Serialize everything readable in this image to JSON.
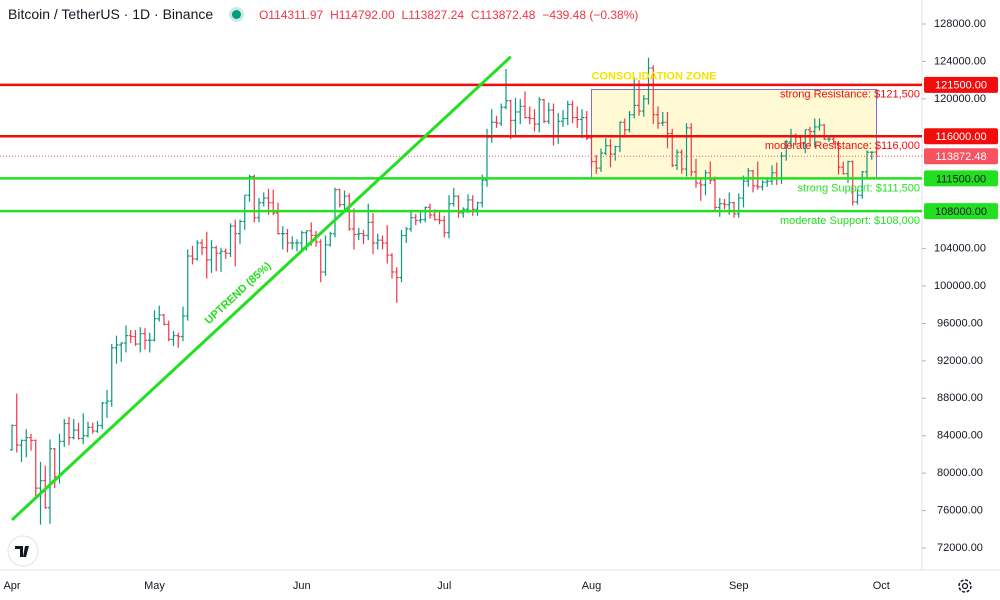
{
  "chart_data": {
    "type": "ohlc",
    "header": {
      "symbol": "Bitcoin / TetherUS · 1D · Binance",
      "open": "O114311.97",
      "high": "H114792.00",
      "low": "L113827.24",
      "close": "C113872.48",
      "change": "−439.48 (−0.38%)"
    },
    "up_color": "#089981",
    "down_color": "#f23645",
    "ylim": [
      69650,
      130565
    ],
    "yticks": [
      {
        "value": 128000,
        "label": "128000.00"
      },
      {
        "value": 124000,
        "label": "124000.00"
      },
      {
        "value": 120000,
        "label": "120000.00"
      },
      {
        "value": 104000,
        "label": "104000.00"
      },
      {
        "value": 100000,
        "label": "100000.00"
      },
      {
        "value": 96000,
        "label": "96000.00"
      },
      {
        "value": 92000,
        "label": "92000.00"
      },
      {
        "value": 88000,
        "label": "88000.00"
      },
      {
        "value": 84000,
        "label": "84000.00"
      },
      {
        "value": 80000,
        "label": "80000.00"
      },
      {
        "value": 76000,
        "label": "76000.00"
      },
      {
        "value": 72000,
        "label": "72000.00"
      }
    ],
    "categories": [
      "Apr",
      null,
      null,
      null,
      null,
      null,
      null,
      null,
      null,
      null,
      null,
      null,
      null,
      null,
      null,
      null,
      null,
      null,
      null,
      null,
      null,
      null,
      null,
      null,
      null,
      null,
      null,
      null,
      null,
      null,
      "May",
      null,
      null,
      null,
      null,
      null,
      null,
      null,
      null,
      null,
      null,
      null,
      null,
      null,
      null,
      null,
      null,
      null,
      null,
      null,
      null,
      null,
      null,
      null,
      null,
      null,
      null,
      null,
      null,
      null,
      null,
      "Jun",
      null,
      null,
      null,
      null,
      null,
      null,
      null,
      null,
      null,
      null,
      null,
      null,
      null,
      null,
      null,
      null,
      null,
      null,
      null,
      null,
      null,
      null,
      null,
      null,
      null,
      null,
      null,
      null,
      null,
      "Jul",
      null,
      null,
      null,
      null,
      null,
      null,
      null,
      null,
      null,
      null,
      null,
      null,
      null,
      null,
      null,
      null,
      null,
      null,
      null,
      null,
      null,
      null,
      null,
      null,
      null,
      null,
      null,
      null,
      null,
      null,
      "Aug",
      null,
      null,
      null,
      null,
      null,
      null,
      null,
      null,
      null,
      null,
      null,
      null,
      null,
      null,
      null,
      null,
      null,
      null,
      null,
      null,
      null,
      null,
      null,
      null,
      null,
      null,
      null,
      null,
      null,
      null,
      "Sep",
      null,
      null,
      null,
      null,
      null,
      null,
      null,
      null,
      null,
      null,
      null,
      null,
      null,
      null,
      null,
      null,
      null,
      null,
      null,
      null,
      null,
      null,
      null,
      null,
      null,
      null,
      null,
      null,
      null,
      "Oct"
    ],
    "ohlc": [
      [
        82500,
        85200,
        82400,
        85100
      ],
      [
        85100,
        88500,
        82200,
        83000
      ],
      [
        83000,
        83600,
        81200,
        83500
      ],
      [
        83500,
        84700,
        81700,
        83800
      ],
      [
        83800,
        84200,
        82400,
        83500
      ],
      [
        83500,
        83600,
        77200,
        78400
      ],
      [
        78400,
        81200,
        74500,
        79200
      ],
      [
        79200,
        80800,
        76200,
        76300
      ],
      [
        76300,
        83600,
        74600,
        82600
      ],
      [
        82600,
        82700,
        78400,
        79600
      ],
      [
        79600,
        84200,
        78900,
        83400
      ],
      [
        83400,
        85800,
        82800,
        85300
      ],
      [
        85300,
        86000,
        83000,
        83800
      ],
      [
        83800,
        85800,
        83600,
        84600
      ],
      [
        84600,
        85400,
        83600,
        83700
      ],
      [
        83700,
        86400,
        83100,
        84000
      ],
      [
        84000,
        85500,
        83800,
        84900
      ],
      [
        84900,
        85400,
        84200,
        84500
      ],
      [
        84500,
        85600,
        84300,
        85100
      ],
      [
        85100,
        87600,
        84700,
        87500
      ],
      [
        87500,
        88900,
        85900,
        87700
      ],
      [
        87700,
        93800,
        87100,
        93400
      ],
      [
        93400,
        94700,
        91700,
        93700
      ],
      [
        93700,
        94000,
        91900,
        93900
      ],
      [
        93900,
        95800,
        92900,
        94700
      ],
      [
        94700,
        95300,
        93900,
        94600
      ],
      [
        94600,
        95300,
        93600,
        93800
      ],
      [
        93800,
        95600,
        92900,
        94900
      ],
      [
        94900,
        95500,
        93200,
        94200
      ],
      [
        94200,
        95000,
        92900,
        94200
      ],
      [
        94200,
        97400,
        94100,
        96500
      ],
      [
        96500,
        97900,
        96200,
        96900
      ],
      [
        96900,
        97000,
        95800,
        95900
      ],
      [
        95900,
        96300,
        94100,
        94300
      ],
      [
        94300,
        95200,
        93600,
        94700
      ],
      [
        94700,
        95000,
        93400,
        94600
      ],
      [
        94600,
        97800,
        94100,
        96800
      ],
      [
        96800,
        103900,
        96300,
        103200
      ],
      [
        103200,
        104300,
        102300,
        102900
      ],
      [
        102900,
        104900,
        102700,
        104600
      ],
      [
        104600,
        105000,
        103300,
        104100
      ],
      [
        104100,
        105800,
        100800,
        102800
      ],
      [
        102800,
        104900,
        101400,
        104100
      ],
      [
        104100,
        104300,
        101600,
        103500
      ],
      [
        103500,
        104100,
        101500,
        103700
      ],
      [
        103700,
        104000,
        102900,
        103500
      ],
      [
        103500,
        106700,
        103100,
        106400
      ],
      [
        106400,
        107100,
        102100,
        105600
      ],
      [
        105600,
        107100,
        104500,
        106900
      ],
      [
        106900,
        109700,
        106000,
        109700
      ],
      [
        109700,
        111900,
        109000,
        111700
      ],
      [
        111700,
        111900,
        106800,
        107300
      ],
      [
        107300,
        109400,
        106800,
        108900
      ],
      [
        108900,
        110000,
        108500,
        109400
      ],
      [
        109400,
        110400,
        107600,
        108900
      ],
      [
        108900,
        110300,
        107600,
        107800
      ],
      [
        107800,
        108900,
        105500,
        105600
      ],
      [
        105600,
        106400,
        103900,
        105600
      ],
      [
        105600,
        106100,
        103600,
        104600
      ],
      [
        104600,
        105300,
        103900,
        104600
      ],
      [
        104600,
        105000,
        103700,
        104600
      ],
      [
        104600,
        105900,
        103900,
        105700
      ],
      [
        105700,
        105900,
        103800,
        105900
      ],
      [
        105900,
        106800,
        104300,
        105400
      ],
      [
        105400,
        105900,
        104200,
        104700
      ],
      [
        104700,
        105000,
        100400,
        101500
      ],
      [
        101500,
        105400,
        101100,
        104400
      ],
      [
        104400,
        105800,
        104200,
        105600
      ],
      [
        105600,
        110500,
        105200,
        110300
      ],
      [
        110300,
        110400,
        108400,
        108700
      ],
      [
        108700,
        110200,
        108000,
        109600
      ],
      [
        109600,
        109900,
        105900,
        106100
      ],
      [
        106100,
        108300,
        103900,
        105500
      ],
      [
        105500,
        106200,
        104900,
        105600
      ],
      [
        105600,
        106000,
        104500,
        105400
      ],
      [
        105400,
        108800,
        104900,
        106800
      ],
      [
        106800,
        107800,
        103400,
        104600
      ],
      [
        104600,
        105600,
        103900,
        104900
      ],
      [
        104900,
        105400,
        103900,
        104600
      ],
      [
        104600,
        106500,
        102400,
        103300
      ],
      [
        103300,
        103500,
        100800,
        101500
      ],
      [
        101500,
        102000,
        98200,
        100900
      ],
      [
        100900,
        106000,
        100400,
        105400
      ],
      [
        105400,
        106300,
        104600,
        106100
      ],
      [
        106100,
        108100,
        105800,
        107300
      ],
      [
        107300,
        107700,
        106500,
        107000
      ],
      [
        107000,
        108000,
        106700,
        107100
      ],
      [
        107100,
        108500,
        106800,
        108400
      ],
      [
        108400,
        108800,
        107200,
        107600
      ],
      [
        107600,
        108200,
        107000,
        107100
      ],
      [
        107100,
        108000,
        106600,
        107000
      ],
      [
        107000,
        107500,
        105200,
        105700
      ],
      [
        105700,
        109700,
        105100,
        108800
      ],
      [
        108800,
        110500,
        108500,
        109600
      ],
      [
        109600,
        109700,
        107300,
        107800
      ],
      [
        107800,
        108400,
        107300,
        108200
      ],
      [
        108200,
        109800,
        107800,
        109200
      ],
      [
        109200,
        109700,
        107500,
        108200
      ],
      [
        108200,
        109000,
        107500,
        108900
      ],
      [
        108900,
        111900,
        108400,
        111300
      ],
      [
        111300,
        116800,
        110600,
        115900
      ],
      [
        115900,
        118900,
        115300,
        117500
      ],
      [
        117500,
        118200,
        116900,
        117400
      ],
      [
        117400,
        119500,
        117100,
        119100
      ],
      [
        119100,
        123200,
        118900,
        119800
      ],
      [
        119800,
        119900,
        115700,
        117700
      ],
      [
        117700,
        120100,
        116000,
        118600
      ],
      [
        118600,
        120000,
        117300,
        119200
      ],
      [
        119200,
        120800,
        117900,
        118000
      ],
      [
        118000,
        119200,
        117300,
        117900
      ],
      [
        117900,
        118900,
        116500,
        117300
      ],
      [
        117300,
        120200,
        116400,
        119900
      ],
      [
        119900,
        120000,
        117400,
        117600
      ],
      [
        117600,
        119600,
        117300,
        118800
      ],
      [
        118800,
        119500,
        115000,
        116000
      ],
      [
        116000,
        118500,
        115200,
        117600
      ],
      [
        117600,
        118800,
        117000,
        117900
      ],
      [
        117900,
        119800,
        117200,
        119400
      ],
      [
        119400,
        119800,
        117400,
        118000
      ],
      [
        118000,
        119200,
        116900,
        117800
      ],
      [
        117800,
        118900,
        115800,
        118000
      ],
      [
        118000,
        118700,
        115600,
        115800
      ],
      [
        115800,
        116100,
        112700,
        113300
      ],
      [
        113300,
        114000,
        112000,
        112600
      ],
      [
        112600,
        114700,
        112200,
        114200
      ],
      [
        114200,
        115800,
        114000,
        115000
      ],
      [
        115000,
        115700,
        112700,
        114100
      ],
      [
        114100,
        115000,
        113400,
        114900
      ],
      [
        114900,
        117600,
        114300,
        117500
      ],
      [
        117500,
        117900,
        115900,
        116700
      ],
      [
        116700,
        118700,
        116400,
        118300
      ],
      [
        118300,
        122300,
        117900,
        119300
      ],
      [
        119300,
        122000,
        118200,
        118700
      ],
      [
        118700,
        120400,
        118100,
        120000
      ],
      [
        120000,
        124400,
        119400,
        123300
      ],
      [
        123300,
        123600,
        117300,
        118300
      ],
      [
        118300,
        119200,
        116800,
        117400
      ],
      [
        117400,
        118600,
        117100,
        117500
      ],
      [
        117500,
        118600,
        114700,
        116300
      ],
      [
        116300,
        116800,
        112700,
        112900
      ],
      [
        112900,
        114600,
        112400,
        114300
      ],
      [
        114300,
        114600,
        112000,
        112500
      ],
      [
        112500,
        117400,
        111700,
        116900
      ],
      [
        116900,
        117400,
        111700,
        112200
      ],
      [
        112200,
        113600,
        110500,
        111000
      ],
      [
        111000,
        111400,
        109100,
        110800
      ],
      [
        110800,
        112400,
        109700,
        112100
      ],
      [
        112100,
        113300,
        110900,
        111300
      ],
      [
        111300,
        111700,
        108000,
        108400
      ],
      [
        108400,
        109400,
        107400,
        108800
      ],
      [
        108800,
        109300,
        108200,
        108700
      ],
      [
        108700,
        110000,
        107600,
        108900
      ],
      [
        108900,
        109000,
        107300,
        107700
      ],
      [
        107700,
        109900,
        107300,
        109400
      ],
      [
        109400,
        111800,
        108400,
        111200
      ],
      [
        111200,
        112600,
        110600,
        112300
      ],
      [
        112300,
        112400,
        110000,
        110700
      ],
      [
        110700,
        113300,
        110300,
        110600
      ],
      [
        110600,
        111300,
        110200,
        111100
      ],
      [
        111100,
        111500,
        110600,
        111200
      ],
      [
        111200,
        112900,
        110800,
        112100
      ],
      [
        112100,
        113200,
        110800,
        111500
      ],
      [
        111500,
        114300,
        110900,
        113900
      ],
      [
        113900,
        115600,
        113400,
        115400
      ],
      [
        115400,
        116800,
        114700,
        116100
      ],
      [
        116100,
        116300,
        115000,
        115900
      ],
      [
        115900,
        116100,
        114800,
        115300
      ],
      [
        115300,
        116700,
        114200,
        116700
      ],
      [
        116700,
        117000,
        114900,
        116500
      ],
      [
        116500,
        117900,
        114800,
        117000
      ],
      [
        117000,
        117900,
        116600,
        117200
      ],
      [
        117200,
        117300,
        115600,
        115700
      ],
      [
        115700,
        116100,
        115400,
        115700
      ],
      [
        115700,
        115900,
        115100,
        115300
      ],
      [
        115300,
        115500,
        111900,
        112700
      ],
      [
        112700,
        113300,
        111900,
        112000
      ],
      [
        112000,
        113400,
        111000,
        113300
      ],
      [
        113300,
        113400,
        108600,
        109000
      ],
      [
        109000,
        110300,
        108700,
        109700
      ],
      [
        109700,
        112300,
        109300,
        112200
      ],
      [
        112200,
        114500,
        111600,
        114300
      ],
      [
        114300,
        114400,
        113500,
        114300
      ],
      [
        114311.97,
        114792.0,
        113827.24,
        113872.48
      ],
      null
    ],
    "levels": [
      {
        "label": "strong Resistance: $121,500",
        "price": {
          "value": 121500,
          "label": "121500.00"
        },
        "color": "#f20d0d"
      },
      {
        "label": "moderate Resistance: $116,000",
        "price": {
          "value": 116000,
          "label": "116000.00"
        },
        "color": "#f20d0d"
      },
      {
        "label": "strong Support: $111,500",
        "price": {
          "value": 111500,
          "label": "111500.00"
        },
        "color": "#22e01f"
      },
      {
        "label": "moderate Support: $108,000",
        "price": {
          "value": 108000,
          "label": "108000.00"
        },
        "color": "#22e01f"
      }
    ],
    "last_price": {
      "value": 113872.48,
      "label": "113872.48",
      "color": "#f7525f"
    },
    "trendline": {
      "label": "UPTREND (85%)",
      "start": [
        0,
        75000
      ],
      "end": [
        105,
        124500
      ],
      "color": "#22e01f"
    },
    "zone": {
      "label": "CONSOLIDATION ZONE",
      "start": 122,
      "end": 182,
      "top": 121000,
      "bottom": 111500,
      "color": "#f5e400"
    }
  }
}
